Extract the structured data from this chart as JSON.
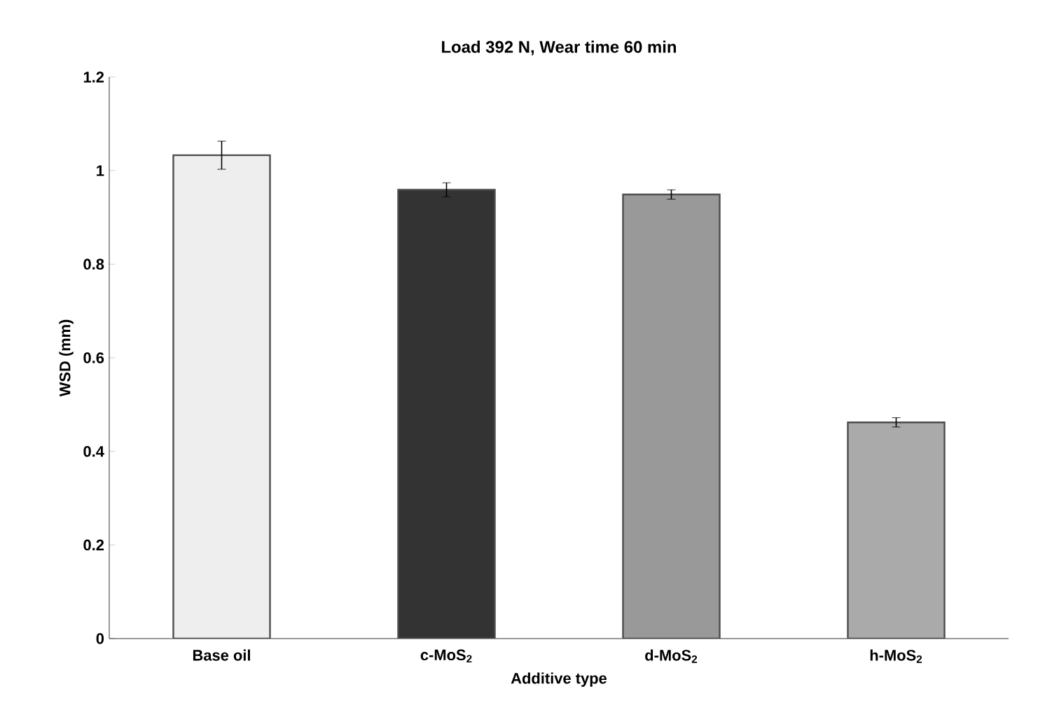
{
  "chart_data": {
    "type": "bar",
    "title": "Load 392 N, Wear time 60 min",
    "xlabel": "Additive type",
    "ylabel": "WSD (mm)",
    "categories": [
      "Base oil",
      "c-MoS$_{2}$",
      "d-MoS$_{2}$",
      "h-MoS$_{2}$"
    ],
    "values": [
      1.033,
      0.959,
      0.949,
      0.462
    ],
    "errors": [
      0.03,
      0.015,
      0.01,
      0.01
    ],
    "colors": [
      "#eeeeee",
      "#333333",
      "#999999",
      "#aaaaaa"
    ],
    "ylim": [
      0,
      1.2
    ],
    "yticks": [
      0,
      0.2,
      0.4,
      0.6,
      0.8,
      1,
      1.2
    ],
    "grid": false
  }
}
